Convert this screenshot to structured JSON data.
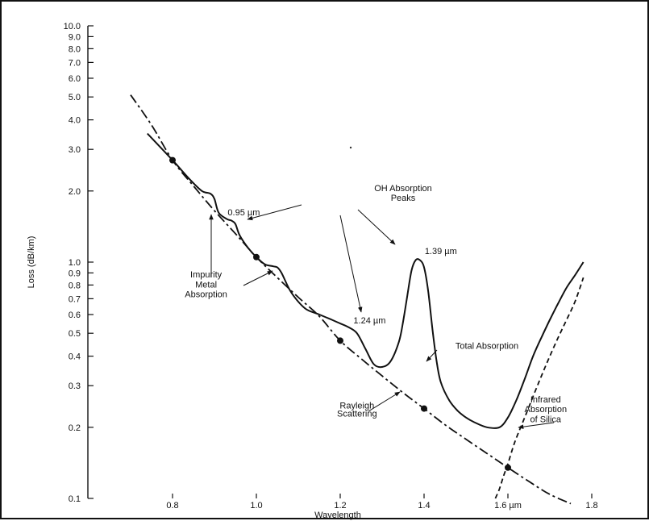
{
  "chart_data": {
    "type": "line",
    "title": "",
    "xlabel": "Wavelength",
    "ylabel": "Loss (dB/km)",
    "xlim": [
      0.8,
      1.8
    ],
    "ylim": [
      0.1,
      10.0
    ],
    "y_scale": "log",
    "grid": false,
    "xticks": [
      0.8,
      1.0,
      1.2,
      1.4,
      1.6,
      1.8
    ],
    "xtick_labels": [
      "0.8",
      "1.0",
      "1.2",
      "1.4",
      "1.6 µm",
      "1.8"
    ],
    "yticks": [
      0.1,
      0.2,
      0.3,
      0.4,
      0.5,
      0.6,
      0.7,
      0.8,
      0.9,
      1.0,
      2.0,
      3.0,
      4.0,
      5.0,
      6.0,
      7.0,
      8.0,
      9.0,
      10.0
    ],
    "ytick_labels": [
      "0.1",
      "0.2",
      "0.3",
      "0.4",
      "0.5",
      "0.6",
      "0.7",
      "0.8",
      "0.9",
      "1.0",
      "2.0",
      "3.0",
      "4.0",
      "5.0",
      "6.0",
      "7.0",
      "8.0",
      "9.0",
      "10.0"
    ],
    "series": [
      {
        "name": "Total Absorption",
        "style": "solid",
        "color": "#111111",
        "x": [
          0.74,
          0.8,
          0.84,
          0.87,
          0.89,
          0.9,
          0.91,
          0.93,
          0.94,
          0.95,
          0.96,
          0.98,
          1.0,
          1.02,
          1.04,
          1.05,
          1.06,
          1.08,
          1.1,
          1.12,
          1.15,
          1.18,
          1.2,
          1.22,
          1.24,
          1.26,
          1.28,
          1.3,
          1.32,
          1.34,
          1.35,
          1.36,
          1.37,
          1.38,
          1.39,
          1.4,
          1.41,
          1.42,
          1.43,
          1.44,
          1.46,
          1.48,
          1.5,
          1.52,
          1.55,
          1.58,
          1.6,
          1.62,
          1.64,
          1.66,
          1.68,
          1.7,
          1.72,
          1.74,
          1.76,
          1.78
        ],
        "y": [
          3.5,
          2.7,
          2.25,
          2.0,
          1.95,
          1.85,
          1.62,
          1.52,
          1.5,
          1.45,
          1.3,
          1.15,
          1.05,
          0.98,
          0.96,
          0.95,
          0.9,
          0.76,
          0.68,
          0.63,
          0.6,
          0.57,
          0.55,
          0.53,
          0.5,
          0.43,
          0.37,
          0.36,
          0.38,
          0.46,
          0.56,
          0.72,
          0.92,
          1.02,
          1.02,
          0.95,
          0.75,
          0.52,
          0.38,
          0.31,
          0.26,
          0.235,
          0.22,
          0.21,
          0.2,
          0.2,
          0.22,
          0.26,
          0.32,
          0.4,
          0.48,
          0.57,
          0.67,
          0.78,
          0.88,
          1.0
        ]
      },
      {
        "name": "Rayleigh Scattering",
        "style": "dash-dot",
        "color": "#111111",
        "x": [
          0.7,
          0.75,
          0.8,
          0.85,
          0.9,
          0.95,
          1.0,
          1.05,
          1.1,
          1.15,
          1.2,
          1.25,
          1.3,
          1.35,
          1.4,
          1.45,
          1.5,
          1.55,
          1.6,
          1.65,
          1.7,
          1.75
        ],
        "y": [
          5.1,
          3.8,
          2.7,
          2.1,
          1.65,
          1.32,
          1.05,
          0.86,
          0.71,
          0.59,
          0.465,
          0.39,
          0.33,
          0.28,
          0.24,
          0.205,
          0.178,
          0.155,
          0.135,
          0.118,
          0.104,
          0.095
        ]
      },
      {
        "name": "Infrared Absorption of Silica",
        "style": "dashed",
        "color": "#111111",
        "x": [
          1.57,
          1.58,
          1.59,
          1.6,
          1.61,
          1.62,
          1.64,
          1.66,
          1.68,
          1.7,
          1.72,
          1.74,
          1.76,
          1.78
        ],
        "y": [
          0.1,
          0.11,
          0.125,
          0.14,
          0.16,
          0.18,
          0.22,
          0.27,
          0.33,
          0.4,
          0.48,
          0.57,
          0.68,
          0.86
        ]
      }
    ],
    "markers": [
      {
        "x": 0.8,
        "y": 2.7
      },
      {
        "x": 1.0,
        "y": 1.05
      },
      {
        "x": 1.2,
        "y": 0.465
      },
      {
        "x": 1.4,
        "y": 0.24
      },
      {
        "x": 1.6,
        "y": 0.135
      }
    ],
    "annotations": [
      {
        "text": "OH Absorption",
        "x": 1.35,
        "y": 2.0
      },
      {
        "text": "Peaks",
        "x": 1.35,
        "y": 1.82
      },
      {
        "text": "0.95 µm",
        "x": 0.97,
        "y": 1.58
      },
      {
        "text": "1.39 µm",
        "x": 1.44,
        "y": 1.08
      },
      {
        "text": "1.24 µm",
        "x": 1.27,
        "y": 0.55
      },
      {
        "text": "Impurity",
        "x": 0.88,
        "y": 0.86
      },
      {
        "text": "Metal",
        "x": 0.88,
        "y": 0.78
      },
      {
        "text": "Absorption",
        "x": 0.88,
        "y": 0.71
      },
      {
        "text": "Total Absorption",
        "x": 1.55,
        "y": 0.43
      },
      {
        "text": "Rayleigh",
        "x": 1.24,
        "y": 0.24
      },
      {
        "text": "Scattering",
        "x": 1.24,
        "y": 0.222
      },
      {
        "text": "Infrared",
        "x": 1.69,
        "y": 0.255
      },
      {
        "text": "Absorption",
        "x": 1.69,
        "y": 0.232
      },
      {
        "text": "of Silica",
        "x": 1.69,
        "y": 0.21
      }
    ]
  }
}
